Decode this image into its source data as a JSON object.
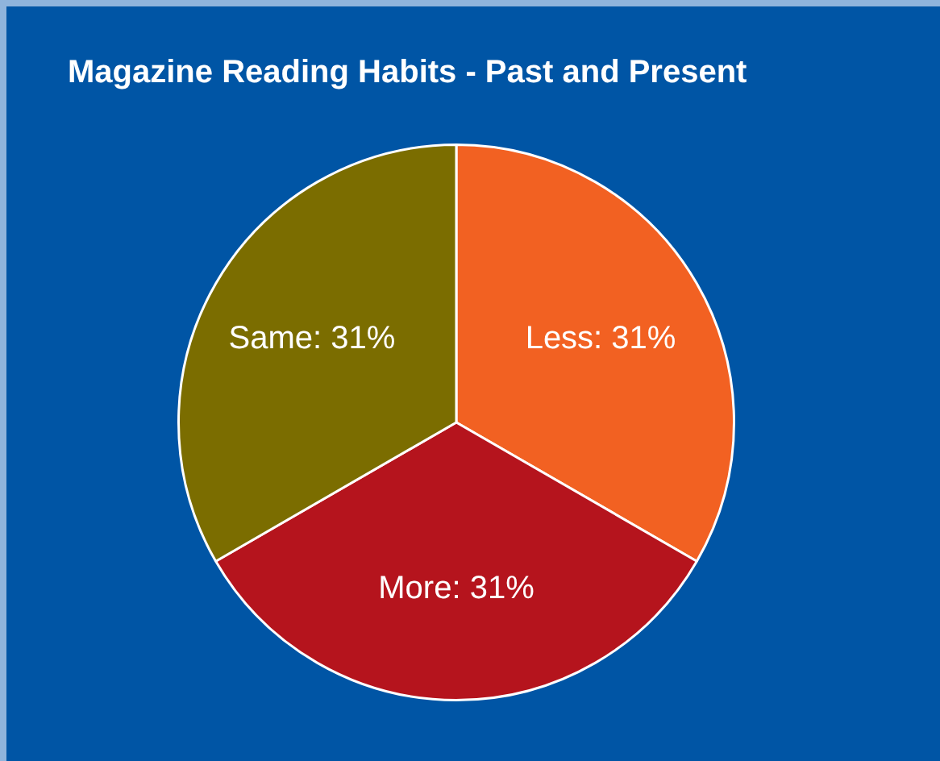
{
  "chart_data": {
    "type": "pie",
    "title": "Magazine Reading Habits - Past and Present",
    "categories": [
      "Less",
      "More",
      "Same"
    ],
    "values": [
      31,
      31,
      31
    ],
    "value_labels": [
      "31%",
      "31%",
      "31%"
    ],
    "colors": [
      "#f26122",
      "#b5141d",
      "#7b6d00"
    ],
    "legend": false
  }
}
